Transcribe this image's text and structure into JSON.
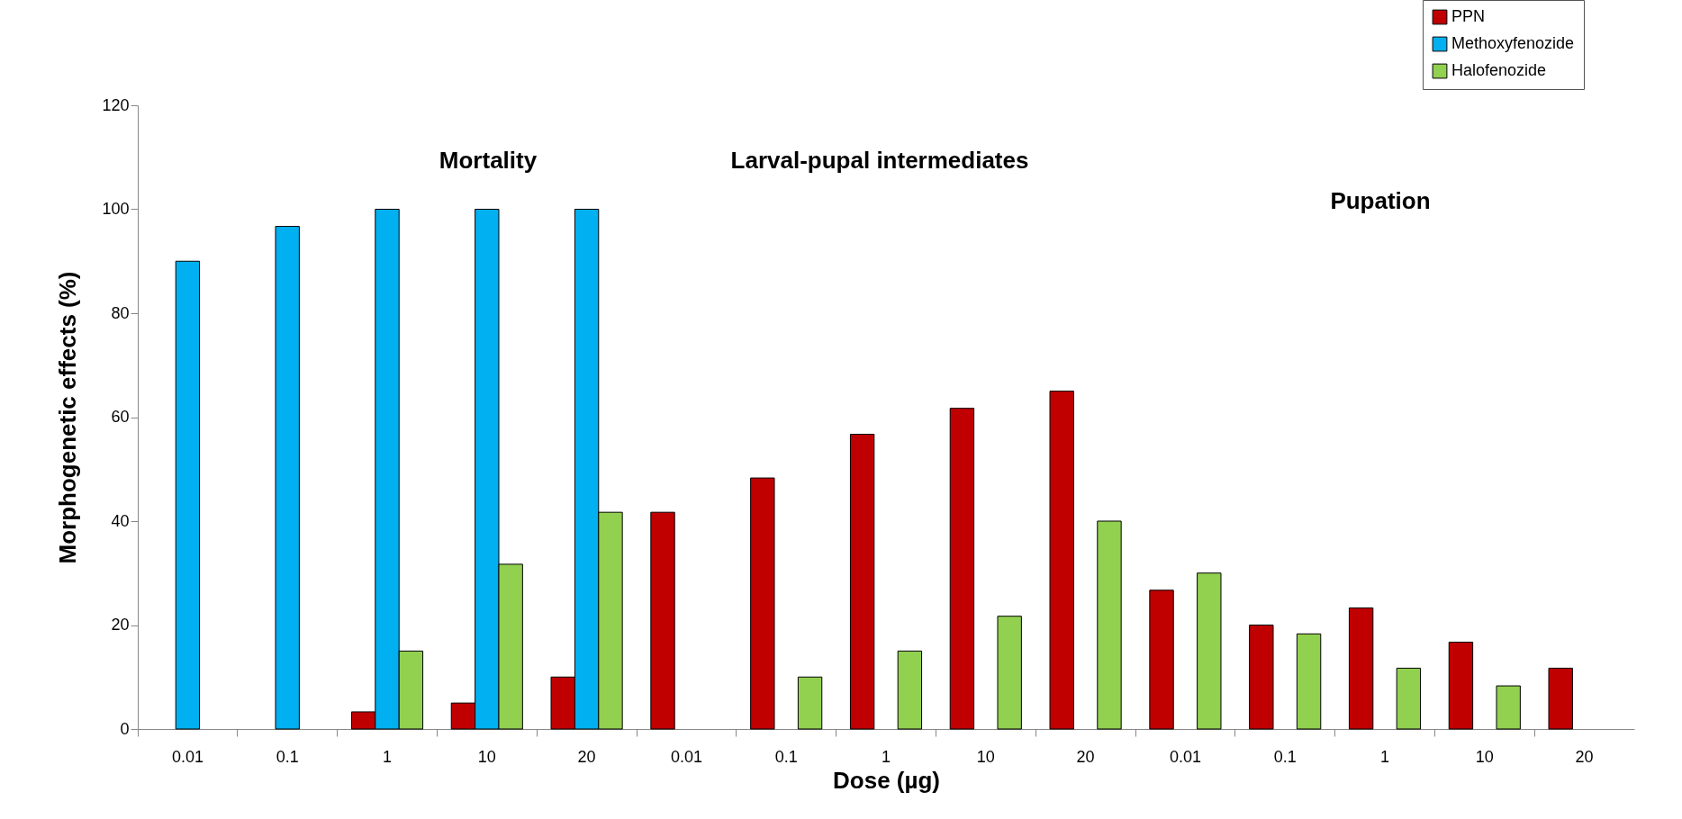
{
  "chart_data": {
    "type": "bar",
    "xlabel": "Dose (µg)",
    "ylabel": "Morphogenetic effects  (%)",
    "categories": [
      "0.01",
      "0.1",
      "1",
      "10",
      "20",
      "0.01",
      "0.1",
      "1",
      "10",
      "20",
      "0.01",
      "0.1",
      "1",
      "10",
      "20"
    ],
    "series": [
      {
        "name": "PPN",
        "color": "#c00000",
        "values": [
          null,
          null,
          3.3,
          5,
          10,
          41.7,
          48.3,
          56.7,
          61.7,
          65,
          26.7,
          20,
          23.3,
          16.7,
          11.7
        ]
      },
      {
        "name": "Methoxyfenozide",
        "color": "#00b0f0",
        "values": [
          90,
          96.7,
          100,
          100,
          100,
          null,
          null,
          null,
          null,
          null,
          null,
          null,
          null,
          null,
          null
        ]
      },
      {
        "name": "Halofenozide",
        "color": "#92d050",
        "values": [
          null,
          null,
          15,
          31.7,
          41.7,
          null,
          10,
          15,
          21.7,
          40,
          30,
          18.3,
          11.7,
          8.3,
          null
        ]
      }
    ],
    "ylim": [
      0,
      120
    ],
    "yticks": [
      0,
      20,
      40,
      60,
      80,
      100,
      120
    ],
    "grid": false,
    "legend": "top right",
    "annotations": [
      "Mortality",
      "Larval-pupal intermediates",
      "Pupation"
    ]
  }
}
